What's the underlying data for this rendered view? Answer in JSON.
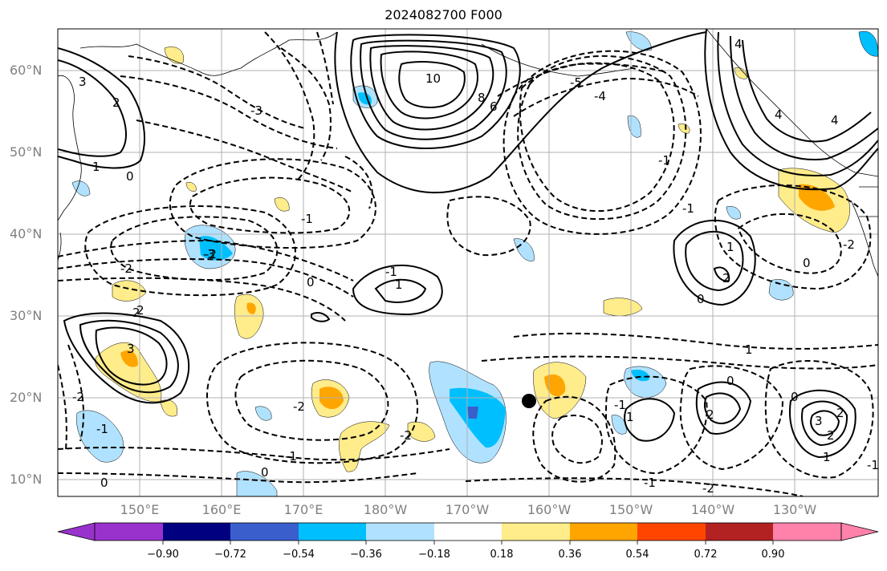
{
  "title": "2024082700 F000",
  "map": {
    "lat_labels": [
      "60°N",
      "50°N",
      "40°N",
      "30°N",
      "20°N",
      "10°N"
    ],
    "lon_labels": [
      "150°E",
      "160°E",
      "170°E",
      "180°W",
      "170°W",
      "160°W",
      "150°W",
      "140°W",
      "130°W"
    ],
    "contour_labels": [
      "10",
      "8",
      "6",
      "4",
      "4",
      "3",
      "2",
      "1",
      "0",
      "-1",
      "-2",
      "-3",
      "-4",
      "-5",
      "1",
      "2",
      "3",
      "-1",
      "-2",
      "-1",
      "0",
      "1",
      "2",
      "0",
      "1",
      "2",
      "-1",
      "-2",
      "0",
      "-2",
      "-1",
      "-3",
      "2",
      "3",
      "4",
      "-1",
      "2",
      "-2",
      "-1",
      "-2",
      "0",
      "-1",
      "0",
      "2",
      "1",
      "0",
      "-1",
      "-2",
      "0",
      "1"
    ]
  },
  "colorbar": {
    "colors": [
      "#9932cc",
      "#000080",
      "#3a5fcd",
      "#00bfff",
      "#b0e2ff",
      "#ffffff",
      "#ffec8b",
      "#ffa500",
      "#ff4500",
      "#b22222",
      "#ff82ab"
    ],
    "tick_labels": [
      "−0.90",
      "−0.72",
      "−0.54",
      "−0.36",
      "−0.18",
      "0.18",
      "0.36",
      "0.54",
      "0.72",
      "0.90"
    ]
  },
  "colors": {
    "grid": "#b0b0b0",
    "contour": "#000000",
    "coast": "#000000",
    "marker": "#000000"
  }
}
